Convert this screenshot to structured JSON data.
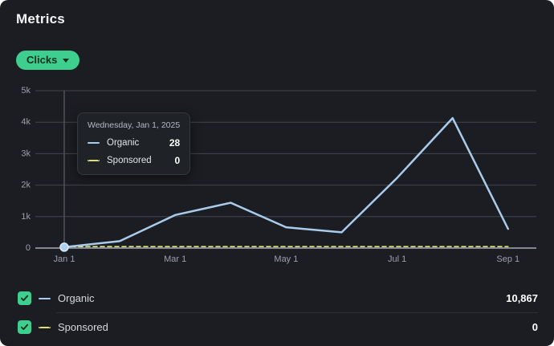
{
  "theme": {
    "card_bg": "#1b1d22",
    "accent_green": "#3ecf8e",
    "grid_color": "#42464c",
    "zero_axis_color": "#a6acb3",
    "crosshair_color": "#4e5257",
    "axis_label_color": "#9ba0a7",
    "organic_color": "#a9cbec",
    "sponsored_color": "#dfe07a"
  },
  "header": {
    "title": "Metrics"
  },
  "metric_selector": {
    "label": "Clicks"
  },
  "tooltip": {
    "date": "Wednesday, Jan 1, 2025",
    "rows": [
      {
        "label": "Organic",
        "value": "28"
      },
      {
        "label": "Sponsored",
        "value": "0"
      }
    ]
  },
  "legend": {
    "items": [
      {
        "label": "Organic",
        "total": "10,867",
        "checked": true,
        "style": "solid"
      },
      {
        "label": "Sponsored",
        "total": "0",
        "checked": true,
        "style": "dashed"
      }
    ]
  },
  "chart_data": {
    "type": "line",
    "title": "Clicks",
    "x": [
      "Jan 1",
      "Feb 1",
      "Mar 1",
      "Apr 1",
      "May 1",
      "Jun 1",
      "Jul 1",
      "Aug 1",
      "Sep 1"
    ],
    "x_tick_labels": [
      "Jan 1",
      "Mar 1",
      "May 1",
      "Jul 1",
      "Sep 1"
    ],
    "x_tick_indices": [
      0,
      2,
      4,
      6,
      8
    ],
    "y_tick_labels": [
      "0",
      "1k",
      "2k",
      "3k",
      "4k",
      "5k"
    ],
    "ylim": [
      0,
      5000
    ],
    "grid": "horizontal",
    "legend_position": "bottom",
    "series": [
      {
        "name": "Organic",
        "style": "solid",
        "color": "#a9cbec",
        "values": [
          28,
          220,
          1050,
          1440,
          660,
          500,
          2230,
          4130,
          609
        ],
        "total": 10867
      },
      {
        "name": "Sponsored",
        "style": "dashed",
        "color": "#dfe07a",
        "values": [
          0,
          0,
          0,
          0,
          0,
          0,
          0,
          0,
          0
        ],
        "total": 0
      }
    ],
    "highlight": {
      "x_index": 0,
      "series": "Organic",
      "value": 28,
      "date_label": "Wednesday, Jan 1, 2025"
    }
  }
}
